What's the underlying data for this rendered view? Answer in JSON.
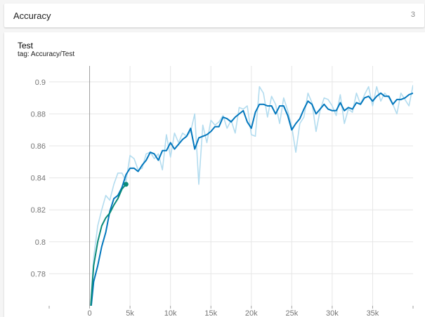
{
  "header": {
    "title": "Accuracy",
    "count": "3"
  },
  "card": {
    "title": "Test",
    "tag": "tag: Accuracy/Test"
  },
  "colors": {
    "main_series": "#0277bd",
    "raw_series": "#b3dcef",
    "hover_series": "#0a8a7a",
    "grid": "#e6e6e6",
    "zero_line": "#9e9e9e",
    "tick_label": "#757575"
  },
  "chart_data": {
    "type": "line",
    "title": "Test",
    "xlabel": "",
    "ylabel": "",
    "xlim": [
      -5000,
      40000
    ],
    "ylim": [
      0.76,
      0.91
    ],
    "grid": true,
    "x_ticks": [
      0,
      5000,
      10000,
      15000,
      20000,
      25000,
      30000,
      35000
    ],
    "x_tick_labels": [
      "0",
      "5k",
      "10k",
      "15k",
      "20k",
      "25k",
      "30k",
      "35k"
    ],
    "y_ticks": [
      0.78,
      0.8,
      0.82,
      0.84,
      0.86,
      0.88,
      0.9
    ],
    "y_tick_labels": [
      "0.78",
      "0.8",
      "0.82",
      "0.84",
      "0.86",
      "0.88",
      "0.9"
    ],
    "series": [
      {
        "role": "raw",
        "x": [
          0,
          500,
          1000,
          1500,
          2000,
          2500,
          3000,
          3500,
          4000,
          4500,
          5000,
          5500,
          6000,
          6500,
          7000,
          7500,
          8000,
          8500,
          9000,
          9500,
          10000,
          10500,
          11000,
          11500,
          12000,
          12500,
          13000,
          13500,
          14000,
          14500,
          15000,
          15500,
          16000,
          16500,
          17000,
          17500,
          18000,
          18500,
          19000,
          19500,
          20000,
          20500,
          21000,
          21500,
          22000,
          22500,
          23000,
          23500,
          24000,
          24500,
          25000,
          25500,
          26000,
          26500,
          27000,
          27500,
          28000,
          28500,
          29000,
          29500,
          30000,
          30500,
          31000,
          31500,
          32000,
          32500,
          33000,
          33500,
          34000,
          34500,
          35000,
          35500,
          36000,
          36500,
          37000,
          37500,
          38000,
          38500,
          39000,
          39500,
          40000
        ],
        "values": [
          0.75,
          0.79,
          0.81,
          0.82,
          0.829,
          0.826,
          0.836,
          0.843,
          0.843,
          0.838,
          0.854,
          0.852,
          0.845,
          0.846,
          0.855,
          0.856,
          0.852,
          0.855,
          0.845,
          0.867,
          0.853,
          0.868,
          0.862,
          0.868,
          0.866,
          0.869,
          0.88,
          0.836,
          0.873,
          0.862,
          0.876,
          0.873,
          0.875,
          0.879,
          0.871,
          0.876,
          0.868,
          0.884,
          0.883,
          0.885,
          0.867,
          0.866,
          0.897,
          0.893,
          0.878,
          0.891,
          0.886,
          0.874,
          0.89,
          0.882,
          0.872,
          0.856,
          0.874,
          0.878,
          0.893,
          0.887,
          0.869,
          0.882,
          0.89,
          0.889,
          0.885,
          0.879,
          0.892,
          0.874,
          0.883,
          0.881,
          0.893,
          0.886,
          0.892,
          0.897,
          0.885,
          0.897,
          0.888,
          0.893,
          0.89,
          0.886,
          0.88,
          0.893,
          0.889,
          0.885,
          0.898
        ]
      },
      {
        "role": "smoothed",
        "x": [
          0,
          500,
          1000,
          1500,
          2000,
          2500,
          3000,
          3500,
          4000,
          4500,
          5000,
          5500,
          6000,
          6500,
          7000,
          7500,
          8000,
          8500,
          9000,
          9500,
          10000,
          10500,
          11000,
          11500,
          12000,
          12500,
          13000,
          13500,
          14000,
          14500,
          15000,
          15500,
          16000,
          16500,
          17000,
          17500,
          18000,
          18500,
          19000,
          19500,
          20000,
          20500,
          21000,
          21500,
          22000,
          22500,
          23000,
          23500,
          24000,
          24500,
          25000,
          25500,
          26000,
          26500,
          27000,
          27500,
          28000,
          28500,
          29000,
          29500,
          30000,
          30500,
          31000,
          31500,
          32000,
          32500,
          33000,
          33500,
          34000,
          34500,
          35000,
          35500,
          36000,
          36500,
          37000,
          37500,
          38000,
          38500,
          39000,
          39500,
          40000
        ],
        "values": [
          0.75,
          0.775,
          0.785,
          0.797,
          0.806,
          0.819,
          0.827,
          0.829,
          0.834,
          0.842,
          0.846,
          0.846,
          0.844,
          0.848,
          0.851,
          0.856,
          0.855,
          0.851,
          0.857,
          0.857,
          0.862,
          0.858,
          0.861,
          0.864,
          0.866,
          0.871,
          0.858,
          0.865,
          0.866,
          0.867,
          0.869,
          0.872,
          0.872,
          0.878,
          0.877,
          0.875,
          0.878,
          0.88,
          0.882,
          0.875,
          0.871,
          0.881,
          0.886,
          0.886,
          0.885,
          0.885,
          0.88,
          0.885,
          0.885,
          0.879,
          0.87,
          0.874,
          0.877,
          0.883,
          0.888,
          0.886,
          0.88,
          0.883,
          0.886,
          0.883,
          0.882,
          0.882,
          0.887,
          0.882,
          0.884,
          0.883,
          0.887,
          0.886,
          0.89,
          0.891,
          0.888,
          0.891,
          0.893,
          0.891,
          0.891,
          0.886,
          0.889,
          0.889,
          0.89,
          0.892,
          0.893
        ]
      },
      {
        "role": "highlighted",
        "x": [
          0,
          500,
          1000,
          1500,
          2000,
          2500,
          3000,
          3500,
          4000,
          4500
        ],
        "values": [
          0.75,
          0.785,
          0.8,
          0.81,
          0.815,
          0.818,
          0.823,
          0.827,
          0.833,
          0.836
        ]
      }
    ]
  }
}
